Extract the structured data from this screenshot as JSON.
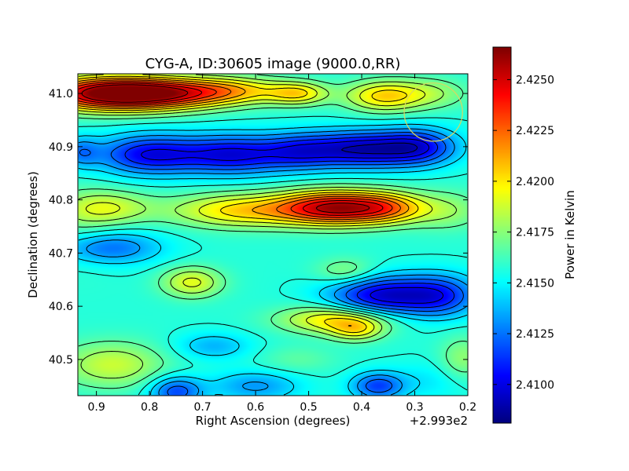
{
  "chart_data": {
    "type": "heatmap",
    "title": "CYG-A, ID:30605 image (9000.0,RR)",
    "xlabel": "Right Ascension (degrees)",
    "ylabel": "Declination (degrees)",
    "x_offset_label": "+2.993e2",
    "x_axis_inverted": true,
    "xlim": [
      0.935,
      0.2
    ],
    "ylim": [
      40.432,
      41.037
    ],
    "x_ticks": [
      0.9,
      0.8,
      0.7,
      0.6,
      0.5,
      0.4,
      0.3,
      0.2
    ],
    "x_tick_labels": [
      "0.9",
      "0.8",
      "0.7",
      "0.6",
      "0.5",
      "0.4",
      "0.3",
      "0.2"
    ],
    "y_ticks": [
      40.5,
      40.6,
      40.7,
      40.8,
      40.9,
      41.0
    ],
    "y_tick_labels": [
      "40.5",
      "40.6",
      "40.7",
      "40.8",
      "40.9",
      "41.0"
    ],
    "colormap": "jet",
    "colorbar": {
      "label": "Power in Kelvin",
      "min": 2.4081,
      "max": 2.4266,
      "ticks": [
        2.41,
        2.4125,
        2.415,
        2.4175,
        2.42,
        2.4225,
        2.425
      ],
      "tick_labels": [
        "2.4100",
        "2.4125",
        "2.4150",
        "2.4175",
        "2.4200",
        "2.4225",
        "2.4250"
      ]
    },
    "baseline": 2.4157,
    "features": [
      {
        "x": 0.88,
        "y": 41.0,
        "dx": 0.09,
        "dy": 0.022,
        "amp": 0.0105
      },
      {
        "x": 0.76,
        "y": 41.0,
        "dx": 0.08,
        "dy": 0.02,
        "amp": 0.006
      },
      {
        "x": 0.64,
        "y": 41.005,
        "dx": 0.07,
        "dy": 0.018,
        "amp": 0.004
      },
      {
        "x": 0.52,
        "y": 41.0,
        "dx": 0.04,
        "dy": 0.015,
        "amp": 0.004
      },
      {
        "x": 0.36,
        "y": 40.995,
        "dx": 0.05,
        "dy": 0.02,
        "amp": 0.0045
      },
      {
        "x": 0.27,
        "y": 41.0,
        "dx": 0.05,
        "dy": 0.02,
        "amp": 0.002
      },
      {
        "x": 0.8,
        "y": 40.885,
        "dx": 0.07,
        "dy": 0.026,
        "amp": -0.0055
      },
      {
        "x": 0.64,
        "y": 40.885,
        "dx": 0.07,
        "dy": 0.026,
        "amp": -0.0055
      },
      {
        "x": 0.52,
        "y": 40.89,
        "dx": 0.05,
        "dy": 0.024,
        "amp": -0.003
      },
      {
        "x": 0.4,
        "y": 40.895,
        "dx": 0.08,
        "dy": 0.024,
        "amp": -0.0065
      },
      {
        "x": 0.29,
        "y": 40.9,
        "dx": 0.05,
        "dy": 0.024,
        "amp": -0.004
      },
      {
        "x": 0.93,
        "y": 40.89,
        "dx": 0.025,
        "dy": 0.02,
        "amp": -0.0025
      },
      {
        "x": 0.45,
        "y": 40.785,
        "dx": 0.075,
        "dy": 0.022,
        "amp": 0.0095
      },
      {
        "x": 0.35,
        "y": 40.785,
        "dx": 0.05,
        "dy": 0.02,
        "amp": 0.004
      },
      {
        "x": 0.63,
        "y": 40.78,
        "dx": 0.09,
        "dy": 0.022,
        "amp": 0.0045
      },
      {
        "x": 0.88,
        "y": 40.785,
        "dx": 0.06,
        "dy": 0.022,
        "amp": 0.003
      },
      {
        "x": 0.24,
        "y": 40.78,
        "dx": 0.05,
        "dy": 0.025,
        "amp": 0.002
      },
      {
        "x": 0.88,
        "y": 40.71,
        "dx": 0.07,
        "dy": 0.022,
        "amp": -0.0035
      },
      {
        "x": 0.72,
        "y": 40.645,
        "dx": 0.04,
        "dy": 0.02,
        "amp": 0.0035
      },
      {
        "x": 0.43,
        "y": 40.665,
        "dx": 0.04,
        "dy": 0.018,
        "amp": 0.002
      },
      {
        "x": 0.36,
        "y": 40.62,
        "dx": 0.07,
        "dy": 0.026,
        "amp": -0.006
      },
      {
        "x": 0.25,
        "y": 40.62,
        "dx": 0.05,
        "dy": 0.028,
        "amp": -0.004
      },
      {
        "x": 0.45,
        "y": 40.575,
        "dx": 0.07,
        "dy": 0.018,
        "amp": 0.0045
      },
      {
        "x": 0.41,
        "y": 40.555,
        "dx": 0.035,
        "dy": 0.015,
        "amp": 0.003
      },
      {
        "x": 0.68,
        "y": 40.525,
        "dx": 0.05,
        "dy": 0.018,
        "amp": -0.002
      },
      {
        "x": 0.87,
        "y": 40.49,
        "dx": 0.07,
        "dy": 0.03,
        "amp": 0.003
      },
      {
        "x": 0.52,
        "y": 40.5,
        "dx": 0.05,
        "dy": 0.018,
        "amp": 0.001
      },
      {
        "x": 0.75,
        "y": 40.44,
        "dx": 0.035,
        "dy": 0.02,
        "amp": -0.004
      },
      {
        "x": 0.6,
        "y": 40.45,
        "dx": 0.06,
        "dy": 0.02,
        "amp": -0.0025
      },
      {
        "x": 0.37,
        "y": 40.45,
        "dx": 0.035,
        "dy": 0.018,
        "amp": -0.004
      },
      {
        "x": 0.27,
        "y": 40.46,
        "dx": 0.06,
        "dy": 0.025,
        "amp": -0.001
      },
      {
        "x": 0.21,
        "y": 40.5,
        "dx": 0.03,
        "dy": 0.03,
        "amp": 0.002
      },
      {
        "x": 0.93,
        "y": 40.75,
        "dx": 0.05,
        "dy": 0.05,
        "amp": 0.001
      }
    ],
    "marker": {
      "type": "circle",
      "ra": 0.265,
      "dec": 40.965,
      "radius_deg": 0.055,
      "color": "#d8d860"
    }
  }
}
